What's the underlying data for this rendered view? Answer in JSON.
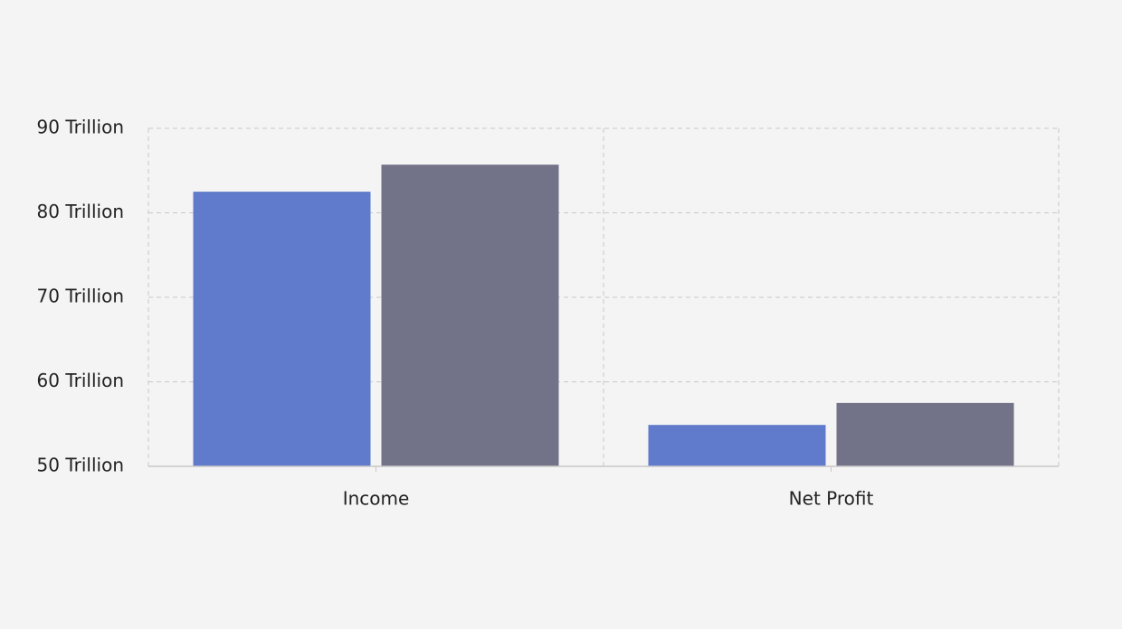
{
  "chart_data": {
    "type": "bar",
    "categories": [
      "Income",
      "Net Profit"
    ],
    "series": [
      {
        "color": "#607bcb",
        "values": [
          82.5,
          54.9
        ]
      },
      {
        "color": "#727289",
        "values": [
          85.7,
          57.5
        ]
      }
    ],
    "ylim": [
      50,
      90
    ],
    "yticks": [
      {
        "value": 50,
        "label": "50 Trillion"
      },
      {
        "value": 60,
        "label": "60 Trillion"
      },
      {
        "value": 70,
        "label": "70 Trillion"
      },
      {
        "value": 80,
        "label": "80 Trillion"
      },
      {
        "value": 90,
        "label": "90 Trillion"
      }
    ],
    "grid": true
  }
}
